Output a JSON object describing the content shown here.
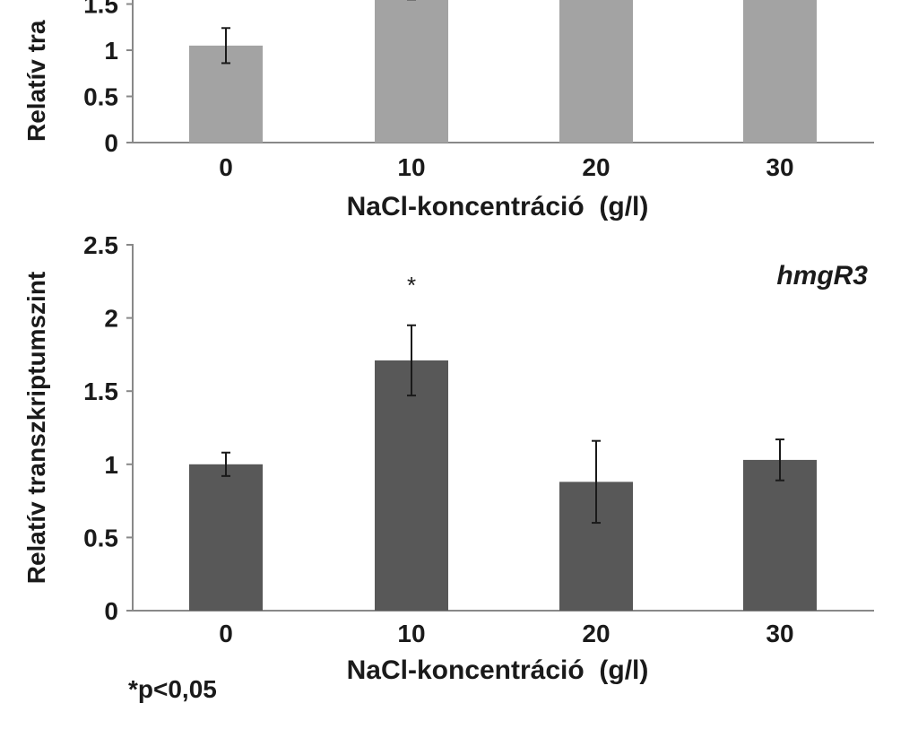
{
  "chart_data": [
    {
      "type": "bar",
      "categories": [
        "0",
        "10",
        "20",
        "30"
      ],
      "values": [
        1.05,
        1.65,
        1.6,
        1.6
      ],
      "errors": [
        0.19,
        0.1,
        null,
        null
      ],
      "bar_color": "#a3a3a3",
      "ylim": [
        0,
        2.5
      ],
      "yticks": [
        "0",
        "0.5",
        "1",
        "1.5"
      ],
      "ylabel": "Relatív tra",
      "xlabel": "NaCl-koncentráció  (g/l)"
    },
    {
      "type": "bar",
      "categories": [
        "0",
        "10",
        "20",
        "30"
      ],
      "values": [
        1.0,
        1.71,
        0.88,
        1.03
      ],
      "errors": [
        0.08,
        0.24,
        0.28,
        0.14
      ],
      "significant": [
        "",
        "*",
        "",
        ""
      ],
      "bar_color": "#585858",
      "ylim": [
        0,
        2.5
      ],
      "yticks": [
        "0",
        "0.5",
        "1",
        "1.5",
        "2",
        "2.5"
      ],
      "ylabel": "Relatív transzkriptumszint",
      "xlabel": "NaCl-koncentráció  (g/l)",
      "gene_label": "hmgR3"
    }
  ],
  "footnote": "*p<0,05"
}
